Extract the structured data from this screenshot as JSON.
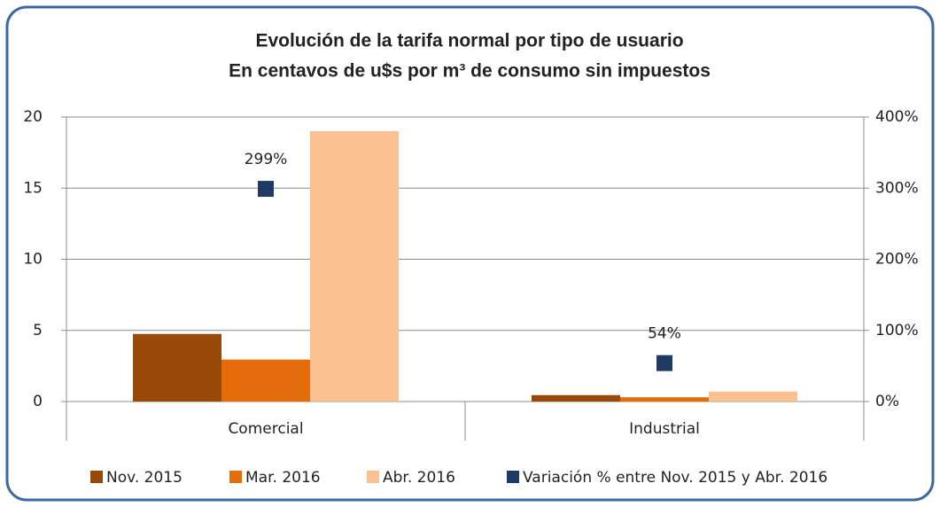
{
  "chart_data": {
    "type": "bar",
    "title": "Evolución de la tarifa normal por tipo de usuario",
    "subtitle": "En centavos de u$s por m³ de consumo sin impuestos",
    "categories": [
      "Comercial",
      "Industrial"
    ],
    "series": [
      {
        "name": "Nov. 2015",
        "color": "#984807",
        "values": [
          4.75,
          0.45
        ]
      },
      {
        "name": "Mar. 2016",
        "color": "#e46c0a",
        "values": [
          2.95,
          0.3
        ]
      },
      {
        "name": "Abr. 2016",
        "color": "#fac090",
        "values": [
          19.0,
          0.7
        ]
      },
      {
        "name": "Variación % entre Nov. 2015 y Abr. 2016",
        "color": "#1f3b63",
        "axis": "y2",
        "values": [
          299,
          54
        ],
        "value_labels": [
          "299%",
          "54%"
        ]
      }
    ],
    "ylim": [
      0,
      20
    ],
    "yticks": [
      0,
      5,
      10,
      15,
      20
    ],
    "y2lim": [
      0,
      400
    ],
    "y2ticks": [
      {
        "value": 0,
        "label": "0%"
      },
      {
        "value": 100,
        "label": "100%"
      },
      {
        "value": 200,
        "label": "200%"
      },
      {
        "value": 300,
        "label": "300%"
      },
      {
        "value": 400,
        "label": "400%"
      }
    ],
    "grid": true,
    "legend": "bottom"
  }
}
